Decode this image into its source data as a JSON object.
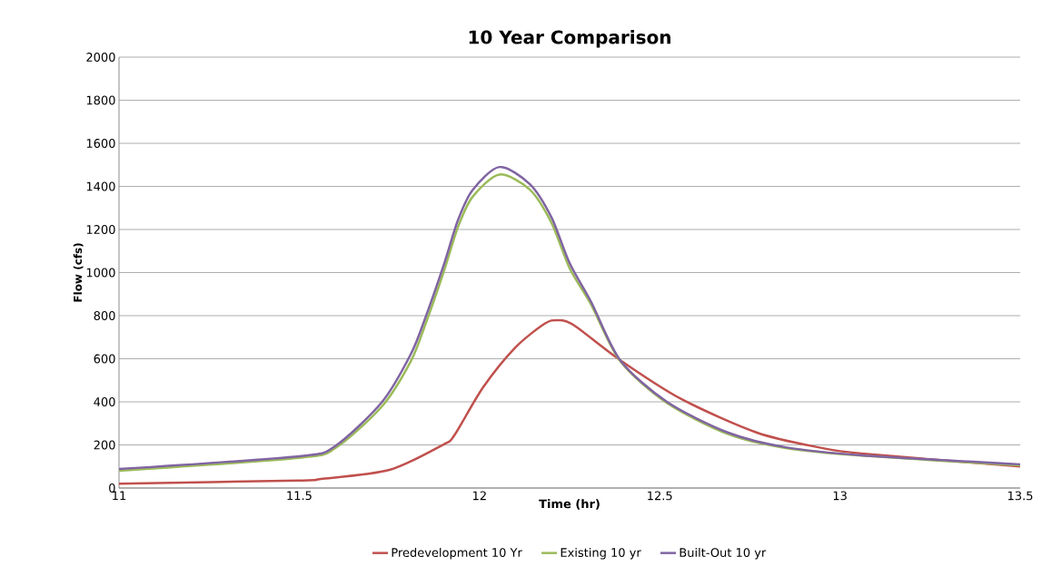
{
  "chart_data": {
    "type": "line",
    "title": "10 Year Comparison",
    "xlabel": "Time (hr)",
    "ylabel": "Flow (cfs)",
    "xlim": [
      11,
      13.5
    ],
    "xticks": [
      11,
      11.5,
      12,
      12.5,
      13,
      13.5
    ],
    "ylim": [
      0,
      2000
    ],
    "yticks": [
      0,
      200,
      400,
      600,
      800,
      1000,
      1200,
      1400,
      1600,
      1800,
      2000
    ],
    "grid": "y",
    "legend": "bottom",
    "marker": "none",
    "line_style": "solid",
    "series": [
      {
        "name": "Predevelopment 10 Yr",
        "color": "#c0504d",
        "x": [
          11,
          11.5,
          11.56,
          11.75,
          11.9,
          11.93,
          12.01,
          12.1,
          12.18,
          12.215,
          12.26,
          12.39,
          12.56,
          12.77,
          12.94,
          13.06,
          13.5
        ],
        "values": [
          20,
          35,
          42,
          84,
          202,
          244,
          467,
          653,
          762,
          779,
          758,
          594,
          413,
          257,
          189,
          160,
          100
        ]
      },
      {
        "name": "Existing 10 yr",
        "color": "#9bbb59",
        "x": [
          11,
          11.5,
          11.6,
          11.73,
          11.81,
          11.85,
          11.9,
          11.94,
          11.98,
          12.055,
          12.14,
          12.2,
          12.25,
          12.31,
          12.39,
          12.52,
          12.69,
          12.85,
          13.06,
          13.5
        ],
        "values": [
          80,
          140,
          185,
          380,
          590,
          760,
          1000,
          1210,
          1350,
          1455,
          1385,
          1230,
          1020,
          850,
          590,
          395,
          250,
          185,
          150,
          105
        ]
      },
      {
        "name": "Built-Out 10 yr",
        "color": "#8064a2",
        "x": [
          11,
          11.5,
          11.6,
          11.73,
          11.81,
          11.85,
          11.9,
          11.94,
          11.98,
          12.055,
          12.14,
          12.2,
          12.25,
          12.31,
          12.39,
          12.52,
          12.69,
          12.85,
          13.06,
          13.5
        ],
        "values": [
          88,
          147,
          195,
          400,
          623,
          791,
          1031,
          1242,
          1381,
          1490,
          1410,
          1255,
          1044,
          863,
          594,
          400,
          257,
          189,
          152,
          110
        ]
      }
    ]
  }
}
